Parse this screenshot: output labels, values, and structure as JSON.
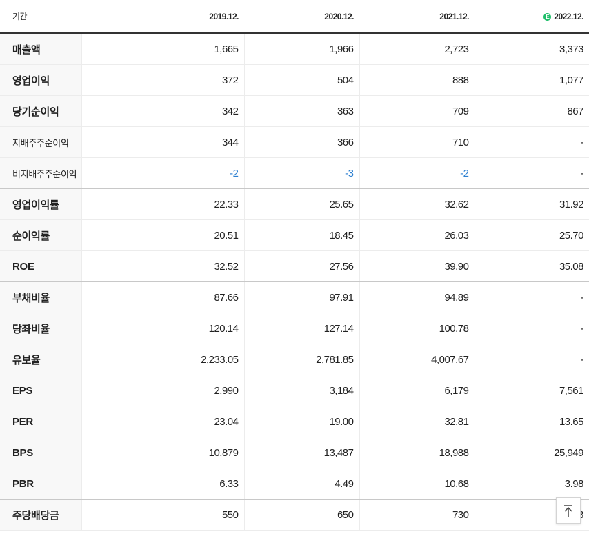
{
  "header": {
    "label": "기간",
    "periods": [
      "2019.12.",
      "2020.12.",
      "2021.12.",
      "2022.12."
    ],
    "estimate_badge": "E"
  },
  "rows": [
    {
      "label": "매출액",
      "values": [
        "1,665",
        "1,966",
        "2,723",
        "3,373"
      ]
    },
    {
      "label": "영업이익",
      "values": [
        "372",
        "504",
        "888",
        "1,077"
      ]
    },
    {
      "label": "당기순이익",
      "values": [
        "342",
        "363",
        "709",
        "867"
      ]
    },
    {
      "label": "지배주주순이익",
      "values": [
        "344",
        "366",
        "710",
        "-"
      ]
    },
    {
      "label": "비지배주주순이익",
      "values": [
        "-2",
        "-3",
        "-2",
        "-"
      ]
    },
    {
      "label": "영업이익률",
      "values": [
        "22.33",
        "25.65",
        "32.62",
        "31.92"
      ]
    },
    {
      "label": "순이익률",
      "values": [
        "20.51",
        "18.45",
        "26.03",
        "25.70"
      ]
    },
    {
      "label": "ROE",
      "values": [
        "32.52",
        "27.56",
        "39.90",
        "35.08"
      ]
    },
    {
      "label": "부채비율",
      "values": [
        "87.66",
        "97.91",
        "94.89",
        "-"
      ]
    },
    {
      "label": "당좌비율",
      "values": [
        "120.14",
        "127.14",
        "100.78",
        "-"
      ]
    },
    {
      "label": "유보율",
      "values": [
        "2,233.05",
        "2,781.85",
        "4,007.67",
        "-"
      ]
    },
    {
      "label": "EPS",
      "values": [
        "2,990",
        "3,184",
        "6,179",
        "7,561"
      ]
    },
    {
      "label": "PER",
      "values": [
        "23.04",
        "19.00",
        "32.81",
        "13.65"
      ]
    },
    {
      "label": "BPS",
      "values": [
        "10,879",
        "13,487",
        "18,988",
        "25,949"
      ]
    },
    {
      "label": "PBR",
      "values": [
        "6.33",
        "4.49",
        "10.68",
        "3.98"
      ]
    },
    {
      "label": "주당배당금",
      "values": [
        "550",
        "650",
        "730",
        "3"
      ]
    }
  ],
  "scroll_top_icon": "arrow-up-to-top-icon",
  "colors": {
    "negative": "#2c7fd0",
    "estimate_badge": "#1fbf6a"
  }
}
